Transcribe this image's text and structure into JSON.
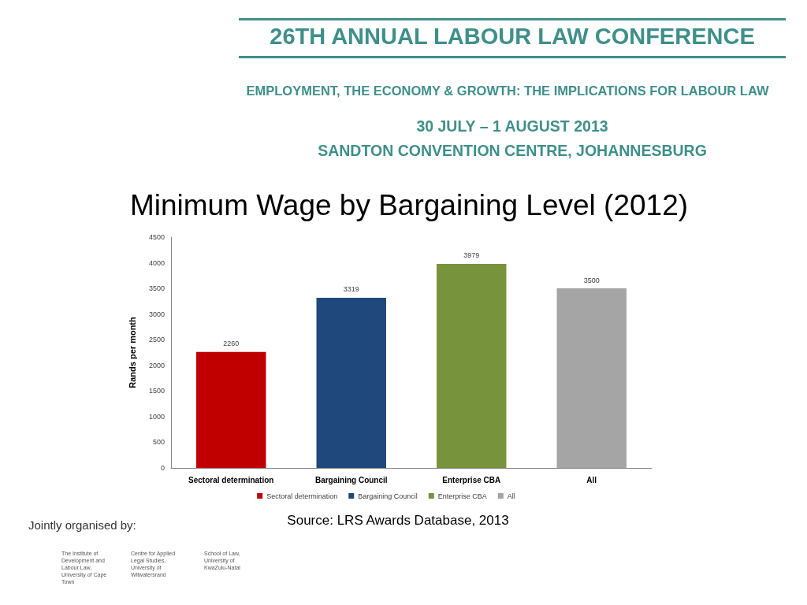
{
  "chart_data": {
    "type": "bar",
    "title": "Minimum Wage by Bargaining Level (2012)",
    "ylabel": "Rands per month",
    "categories": [
      "Sectoral determination",
      "Bargaining Council",
      "Enterprise CBA",
      "All"
    ],
    "series": [
      {
        "name": "Sectoral determination",
        "color": "#c00000",
        "values": [
          2260,
          null,
          null,
          null
        ]
      },
      {
        "name": "Bargaining Council",
        "color": "#1f497d",
        "values": [
          null,
          3319,
          null,
          null
        ]
      },
      {
        "name": "Enterprise CBA",
        "color": "#77933c",
        "values": [
          null,
          null,
          3979,
          null
        ]
      },
      {
        "name": "All",
        "color": "#a5a5a5",
        "values": [
          null,
          null,
          null,
          3500
        ]
      }
    ],
    "stacked": true,
    "ylim": [
      0,
      4500
    ],
    "yticks": [
      0,
      500,
      1000,
      1500,
      2000,
      2500,
      3000,
      3500,
      4000,
      4500
    ],
    "data_labels": true,
    "legend": "bottom",
    "annotations": [
      "26TH ANNUAL LABOUR LAW CONFERENCE",
      "EMPLOYMENT, THE ECONOMY & GROWTH: THE IMPLICATIONS FOR LABOUR LAW",
      "30 JULY – 1 AUGUST 2013",
      "SANDTON CONVENTION CENTRE, JOHANNESBURG",
      "Source: LRS Awards Database, 2013",
      "Jointly organised by:",
      "The Institute of Development and Labour Law, University of Cape Town",
      "Centre for Applied Legal Studies, University of Witwatersrand",
      "School of Law, University of KwaZulu-Natal"
    ]
  }
}
